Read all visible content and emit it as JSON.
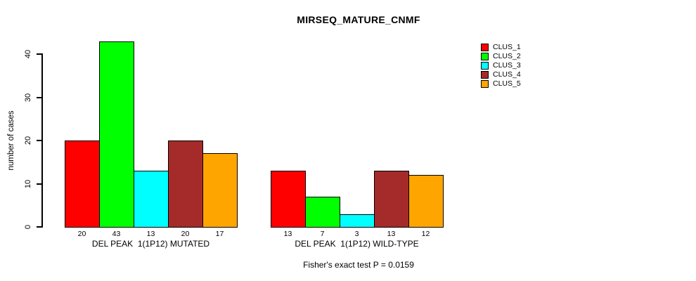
{
  "chart_data": {
    "type": "bar",
    "title": "MIRSEQ_MATURE_CNMF",
    "ylabel": "number of cases",
    "ylim": [
      0,
      40
    ],
    "yticks": [
      0,
      10,
      20,
      30,
      40
    ],
    "grid": false,
    "legend_position": "right",
    "categories": [
      "DEL PEAK  1(1P12) MUTATED",
      "DEL PEAK  1(1P12) WILD-TYPE"
    ],
    "series": [
      {
        "name": "CLUS_1",
        "color": "#FF0000",
        "values": [
          20,
          13
        ]
      },
      {
        "name": "CLUS_2",
        "color": "#00FF00",
        "values": [
          43,
          7
        ]
      },
      {
        "name": "CLUS_3",
        "color": "#00FFFF",
        "values": [
          13,
          3
        ]
      },
      {
        "name": "CLUS_4",
        "color": "#A52A2A",
        "values": [
          20,
          13
        ]
      },
      {
        "name": "CLUS_5",
        "color": "#FFA500",
        "values": [
          17,
          12
        ]
      }
    ],
    "bar_value_labels": [
      [
        20,
        43,
        13,
        20,
        17
      ],
      [
        13,
        7,
        3,
        13,
        12
      ]
    ],
    "annotation": "Fisher's exact test P = 0.0159"
  }
}
